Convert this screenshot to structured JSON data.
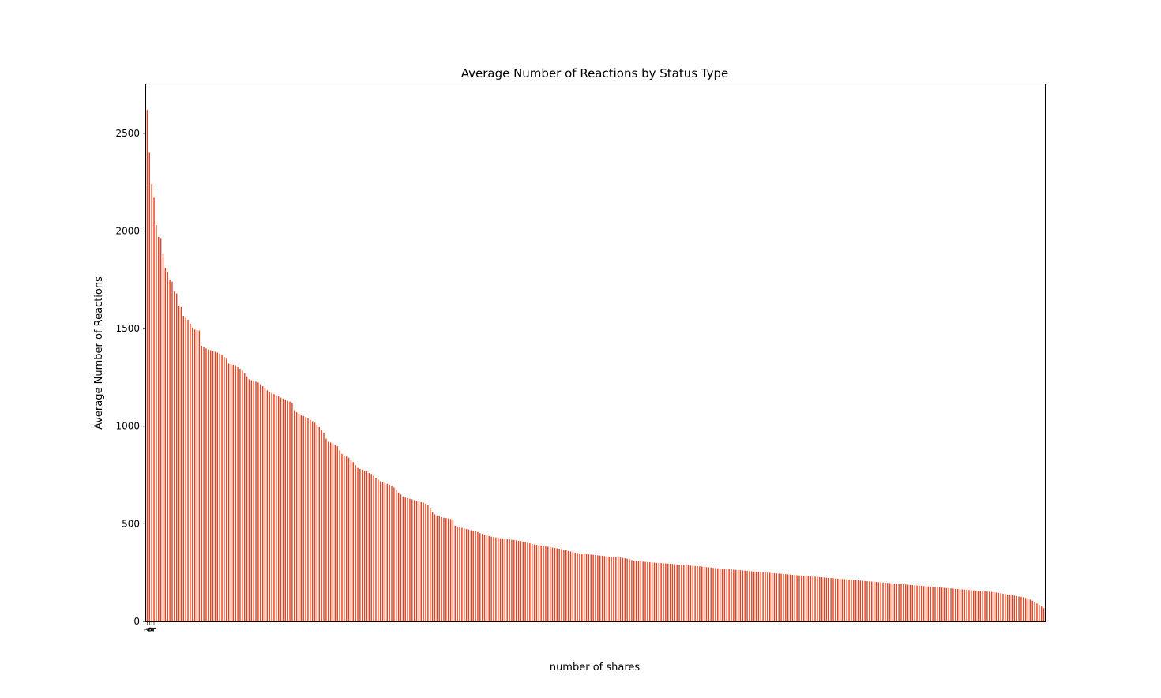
{
  "chart_data": {
    "type": "bar",
    "title": "Average Number of Reactions by Status Type",
    "xlabel": "number of shares",
    "ylabel": "Average Number of Reactions",
    "ylim": [
      0,
      2750
    ],
    "yticks": [
      0,
      500,
      1000,
      1500,
      2000,
      2500
    ],
    "grid": false,
    "legend": "none",
    "bar_color": "#e8401c",
    "first_categories": [
      "1",
      "6",
      "3",
      "5"
    ],
    "values": [
      2620,
      2400,
      2240,
      2170,
      2030,
      1970,
      1960,
      1880,
      1810,
      1790,
      1750,
      1740,
      1690,
      1680,
      1615,
      1610,
      1565,
      1555,
      1545,
      1525,
      1505,
      1495,
      1492,
      1490,
      1412,
      1405,
      1398,
      1392,
      1389,
      1385,
      1381,
      1377,
      1372,
      1364,
      1354,
      1345,
      1320,
      1318,
      1315,
      1312,
      1302,
      1294,
      1285,
      1272,
      1255,
      1240,
      1235,
      1232,
      1228,
      1224,
      1215,
      1205,
      1195,
      1184,
      1177,
      1170,
      1164,
      1158,
      1152,
      1146,
      1141,
      1136,
      1130,
      1126,
      1119,
      1082,
      1071,
      1064,
      1058,
      1052,
      1046,
      1040,
      1032,
      1025,
      1018,
      1006,
      995,
      982,
      967,
      936,
      920,
      916,
      912,
      905,
      897,
      876,
      858,
      849,
      844,
      838,
      827,
      816,
      800,
      786,
      781,
      777,
      773,
      768,
      760,
      755,
      746,
      732,
      726,
      718,
      712,
      708,
      705,
      700,
      695,
      686,
      673,
      660,
      650,
      640,
      634,
      631,
      628,
      625,
      621,
      617,
      614,
      611,
      608,
      604,
      595,
      578,
      560,
      548,
      542,
      538,
      534,
      531,
      529,
      527,
      524,
      519,
      490,
      486,
      483,
      479,
      476,
      473,
      470,
      467,
      465,
      462,
      458,
      452,
      448,
      444,
      440,
      437,
      434,
      432,
      430,
      428,
      426,
      425,
      423,
      421,
      420,
      418,
      417,
      415,
      413,
      411,
      409,
      406,
      403,
      400,
      397,
      394,
      392,
      390,
      388,
      386,
      384,
      382,
      380,
      378,
      376,
      374,
      372,
      370,
      367,
      364,
      361,
      358,
      355,
      352,
      350,
      348,
      346,
      345,
      344,
      343,
      342,
      341,
      340,
      338,
      337,
      336,
      334,
      333,
      332,
      331,
      330,
      329,
      328,
      327,
      325,
      323,
      321,
      318,
      314,
      311,
      309,
      308,
      307,
      306,
      305,
      304,
      303,
      302,
      301,
      300,
      300,
      299,
      298,
      297,
      296,
      295,
      294,
      293,
      292,
      291,
      290,
      289,
      288,
      287,
      286,
      285,
      284,
      283,
      282,
      281,
      279,
      278,
      277,
      276,
      274,
      273,
      272,
      271,
      270,
      269,
      268,
      267,
      266,
      265,
      264,
      263,
      262,
      261,
      260,
      259,
      258,
      257,
      256,
      255,
      254,
      253,
      252,
      251,
      250,
      249,
      248,
      247,
      246,
      245,
      244,
      243,
      242,
      241,
      240,
      239,
      238,
      237,
      236,
      235,
      234,
      233,
      232,
      231,
      230,
      229,
      228,
      227,
      226,
      225,
      224,
      223,
      222,
      221,
      220,
      219,
      218,
      217,
      216,
      215,
      214,
      213,
      212,
      211,
      210,
      209,
      208,
      207,
      206,
      205,
      204,
      203,
      202,
      201,
      200,
      199,
      198,
      197,
      196,
      195,
      194,
      193,
      192,
      191,
      190,
      189,
      188,
      187,
      186,
      185,
      184,
      183,
      182,
      181,
      180,
      179,
      178,
      177,
      176,
      175,
      174,
      173,
      172,
      171,
      170,
      169,
      168,
      167,
      166,
      165,
      164,
      163,
      162,
      161,
      160,
      159,
      158,
      157,
      156,
      155,
      154,
      153,
      152,
      151,
      150,
      148,
      146,
      144,
      142,
      140,
      138,
      136,
      134,
      132,
      130,
      128,
      126,
      124,
      120,
      116,
      112,
      106,
      100,
      92,
      84,
      76,
      68
    ]
  }
}
